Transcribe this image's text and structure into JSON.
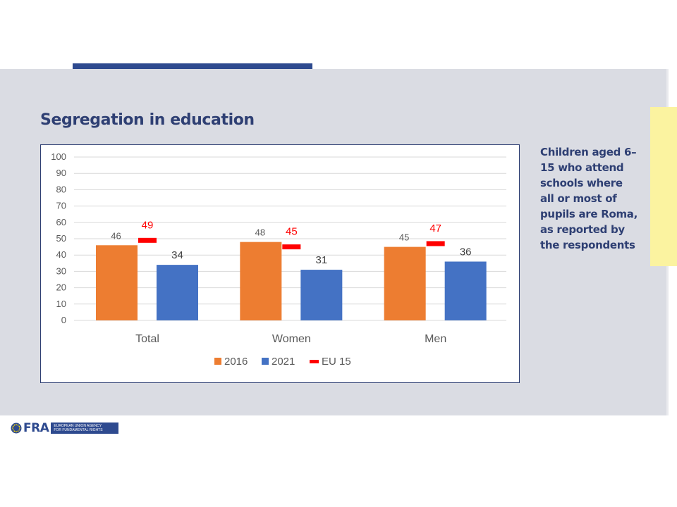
{
  "slide": {
    "title": "Segregation in education",
    "side_note_lines": [
      "Children aged 6–",
      "15 who attend",
      "schools where",
      "all or most of",
      "pupils are Roma,",
      "as reported by",
      "the respondents"
    ]
  },
  "footer": {
    "logo_text": "FRA",
    "agency_lines": [
      "EUROPEAN UNION AGENCY",
      "FOR FUNDAMENTAL RIGHTS"
    ]
  },
  "colors": {
    "s2016": "#ed7d31",
    "s2021": "#4472c4",
    "eu15": "#ff0000",
    "title": "#2e3f73",
    "grid": "#d9d9d9",
    "tick_text": "#595959"
  },
  "chart_data": {
    "type": "bar",
    "categories": [
      "Total",
      "Women",
      "Men"
    ],
    "series": [
      {
        "name": "2016",
        "type": "bar",
        "values": [
          46,
          48,
          45
        ]
      },
      {
        "name": "2021",
        "type": "bar",
        "values": [
          34,
          31,
          36
        ]
      },
      {
        "name": "EU 15",
        "type": "marker",
        "values": [
          49,
          45,
          47
        ]
      }
    ],
    "yticks": [
      0,
      10,
      20,
      30,
      40,
      50,
      60,
      70,
      80,
      90,
      100
    ],
    "ylim": [
      0,
      100
    ],
    "grid": true,
    "legend_position": "bottom"
  }
}
